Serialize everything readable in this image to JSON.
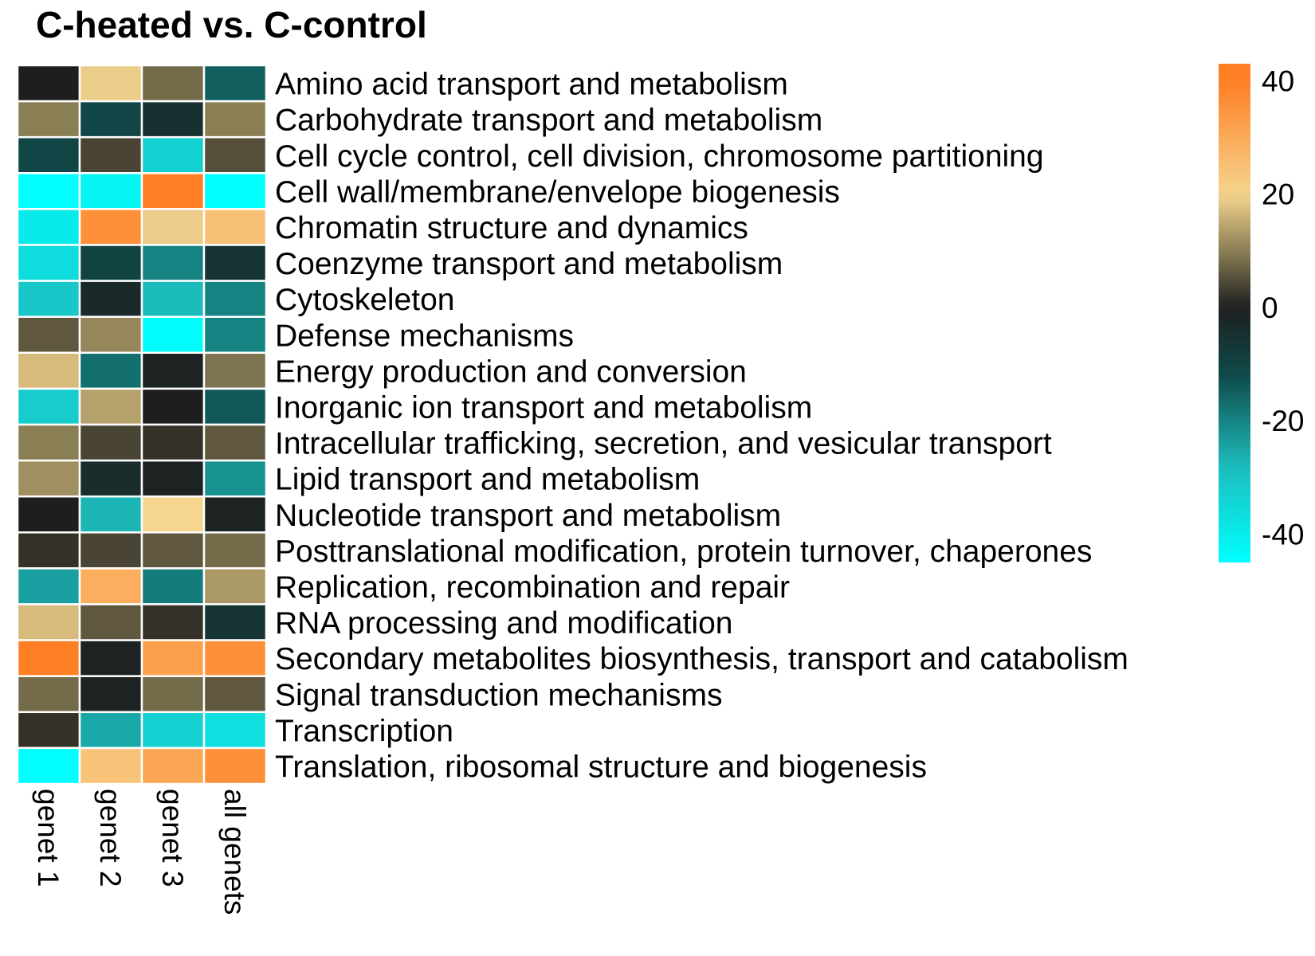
{
  "chart_data": {
    "type": "heatmap",
    "title": "C-heated vs. C-control",
    "columns": [
      "genet 1",
      "genet 2",
      "genet 3",
      "all genets"
    ],
    "rows": [
      "Amino acid transport and metabolism",
      "Carbohydrate transport and metabolism",
      "Cell cycle control, cell division, chromosome partitioning",
      "Cell wall/membrane/envelope biogenesis",
      "Chromatin structure and dynamics",
      "Coenzyme transport and metabolism",
      "Cytoskeleton",
      "Defense mechanisms",
      "Energy production and conversion",
      "Inorganic ion transport and metabolism",
      "Intracellular trafficking, secretion, and vesicular transport",
      "Lipid transport and metabolism",
      "Nucleotide transport and metabolism",
      "Posttranslational modification, protein turnover, chaperones",
      "Replication, recombination and repair",
      "RNA processing and modification",
      "Secondary metabolites biosynthesis, transport and catabolism",
      "Signal transduction mechanisms",
      "Transcription",
      "Translation, ribosomal structure and biogenesis"
    ],
    "values": [
      [
        0,
        19,
        8,
        -15
      ],
      [
        10,
        -11,
        -5,
        10
      ],
      [
        -11,
        4,
        -33,
        5
      ],
      [
        -45,
        -42,
        40,
        -45
      ],
      [
        -40,
        36,
        19,
        25
      ],
      [
        -36,
        -10,
        -20,
        -6
      ],
      [
        -31,
        -3,
        -28,
        -20
      ],
      [
        6,
        11,
        -44,
        -20
      ],
      [
        17,
        -17,
        -1,
        9
      ],
      [
        -32,
        14,
        0,
        -14
      ],
      [
        10,
        4,
        2,
        6
      ],
      [
        12,
        -4,
        -1,
        -22
      ],
      [
        0,
        -27,
        20,
        -1
      ],
      [
        2,
        4,
        6,
        8
      ],
      [
        -24,
        29,
        -19,
        13
      ],
      [
        17,
        6,
        2,
        -6
      ],
      [
        40,
        -1,
        32,
        36
      ],
      [
        8,
        -1,
        8,
        6
      ],
      [
        2,
        -25,
        -33,
        -37
      ],
      [
        -45,
        24,
        31,
        36
      ]
    ],
    "colorbar": {
      "ticks": [
        40,
        20,
        0,
        -20,
        -40
      ],
      "range": [
        -45,
        43
      ],
      "colors": {
        "min": "#00ffff",
        "low_mid": "#1dbcbc",
        "dark_teal": "#0f4a4a",
        "zero": "#1e1e1e",
        "olive": "#8a7e55",
        "tan": "#f6d58e",
        "max": "#ff7f24"
      }
    }
  }
}
